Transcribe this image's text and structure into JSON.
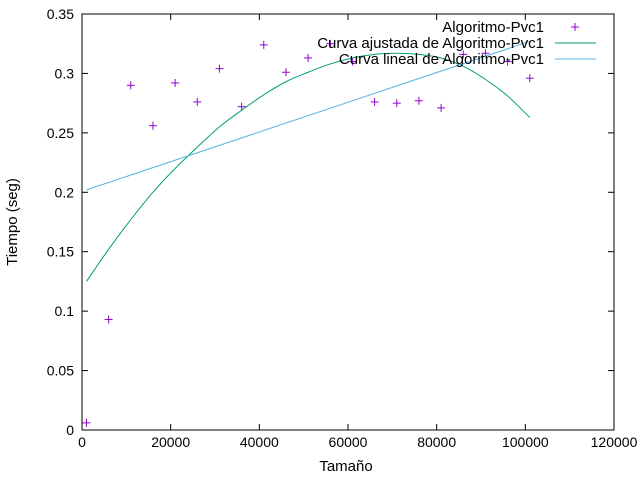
{
  "chart_data": {
    "type": "scatter",
    "title": "",
    "xlabel": "Tamaño",
    "ylabel": "Tiempo (seg)",
    "xlim": [
      0,
      120000
    ],
    "ylim": [
      0,
      0.35
    ],
    "xticks": [
      0,
      20000,
      40000,
      60000,
      80000,
      100000,
      120000
    ],
    "xtick_labels": [
      "0",
      "20000",
      "40000",
      "60000",
      "80000",
      "100000",
      "120000"
    ],
    "yticks": [
      0,
      0.05,
      0.1,
      0.15,
      0.2,
      0.25,
      0.3,
      0.35
    ],
    "ytick_labels": [
      "0",
      "0.05",
      "0.1",
      "0.15",
      "0.2",
      "0.25",
      "0.3",
      "0.35"
    ],
    "grid": false,
    "legend_position": "top-right",
    "series": [
      {
        "name": "Algoritmo-Pvc1",
        "kind": "points",
        "color": "#9400d3",
        "x": [
          1000,
          6000,
          11000,
          16000,
          21000,
          26000,
          31000,
          36000,
          41000,
          46000,
          51000,
          56000,
          61000,
          66000,
          71000,
          76000,
          81000,
          86000,
          91000,
          96000,
          101000
        ],
        "y": [
          0.006,
          0.093,
          0.29,
          0.256,
          0.292,
          0.276,
          0.304,
          0.272,
          0.324,
          0.301,
          0.313,
          0.325,
          0.31,
          0.276,
          0.275,
          0.277,
          0.271,
          0.316,
          0.317,
          0.31,
          0.296
        ]
      },
      {
        "name": "Curva ajustada de Algoritmo-Pvc1",
        "kind": "line",
        "color": "#009e73",
        "x": [
          1000,
          6000,
          11000,
          16000,
          21000,
          26000,
          31000,
          36000,
          41000,
          46000,
          51000,
          56000,
          61000,
          66000,
          71000,
          76000,
          81000,
          86000,
          91000,
          96000,
          101000
        ],
        "y": [
          0.125,
          0.152,
          0.177,
          0.2,
          0.22,
          0.238,
          0.255,
          0.269,
          0.282,
          0.293,
          0.301,
          0.308,
          0.313,
          0.316,
          0.317,
          0.316,
          0.313,
          0.306,
          0.295,
          0.281,
          0.263
        ]
      },
      {
        "name": "Curva lineal de Algoritmo-Pvc1",
        "kind": "line",
        "color": "#56b4e9",
        "x": [
          1000,
          101000
        ],
        "y": [
          0.202,
          0.327
        ]
      }
    ]
  }
}
